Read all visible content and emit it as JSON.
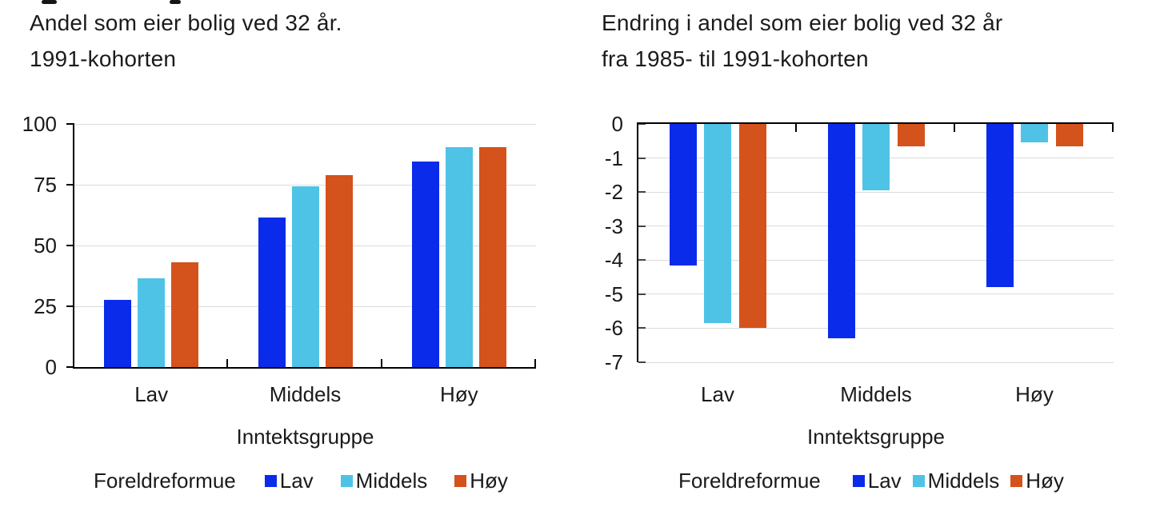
{
  "figure": {
    "background": "#FFFFFF",
    "text_color": "#1A1A1A",
    "grid_color": "#DBDBDB",
    "axis_color": "#000000"
  },
  "chart_data": [
    {
      "type": "bar",
      "title": "Andel som eier bolig ved 32 år. 1991-kohorten",
      "title_lines": [
        "Andel som eier bolig ved 32 år.",
        "1991-kohorten"
      ],
      "categories": [
        "Lav",
        "Middels",
        "Høy"
      ],
      "series": [
        {
          "name": "Lav",
          "color": "#0A2BEA",
          "values": [
            27.5,
            61.5,
            84.5
          ]
        },
        {
          "name": "Middels",
          "color": "#4FC3E6",
          "values": [
            36.5,
            74.5,
            90.5
          ]
        },
        {
          "name": "Høy",
          "color": "#D4521C",
          "values": [
            43,
            79,
            90.5
          ]
        }
      ],
      "xlabel": "Inntektsgruppe",
      "legend_title": "Foreldreformue",
      "ylim": [
        0,
        100
      ],
      "yticks": [
        0,
        25,
        50,
        75,
        100
      ],
      "grid": "horizontal",
      "legend_position": "bottom"
    },
    {
      "type": "bar",
      "title": "Endring i andel som eier bolig ved 32 år fra 1985- til 1991-kohorten",
      "title_lines": [
        "Endring i andel som eier bolig ved 32 år",
        "fra 1985- til 1991-kohorten"
      ],
      "categories": [
        "Lav",
        "Middels",
        "Høy"
      ],
      "series": [
        {
          "name": "Lav",
          "color": "#0A2BEA",
          "values": [
            -4.15,
            -6.3,
            -4.8
          ]
        },
        {
          "name": "Middels",
          "color": "#4FC3E6",
          "values": [
            -5.85,
            -1.95,
            -0.55
          ]
        },
        {
          "name": "Høy",
          "color": "#D4521C",
          "values": [
            -6.0,
            -0.65,
            -0.65
          ]
        }
      ],
      "xlabel": "Inntektsgruppe",
      "legend_title": "Foreldreformue",
      "ylim": [
        -7,
        0
      ],
      "yticks": [
        0,
        -1,
        -2,
        -3,
        -4,
        -5,
        -6,
        -7
      ],
      "grid": "horizontal",
      "legend_position": "bottom"
    }
  ]
}
